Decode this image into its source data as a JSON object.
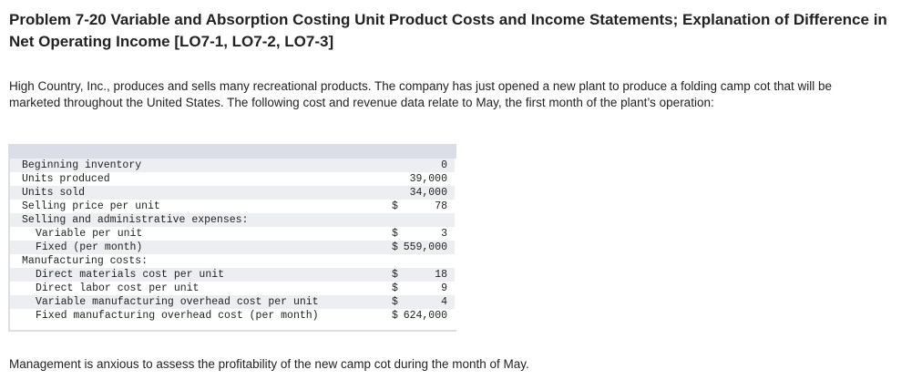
{
  "title": "Problem 7-20 Variable and Absorption Costing Unit Product Costs and Income Statements; Explanation of Difference in Net Operating Income [LO7-1, LO7-2, LO7-3]",
  "intro": "High Country, Inc., produces and sells many recreational products. The company has just opened a new plant to produce a folding camp cot that will be marketed throughout the United States. The following cost and revenue data relate to May, the first month of the plant’s operation:",
  "table": {
    "rows": [
      {
        "label": "Beginning inventory",
        "currency": "",
        "value": "0"
      },
      {
        "label": "Units produced",
        "currency": "",
        "value": "39,000"
      },
      {
        "label": "Units sold",
        "currency": "",
        "value": "34,000"
      },
      {
        "label": "Selling price per unit",
        "currency": "$",
        "value": "78"
      },
      {
        "label": "Selling and administrative expenses:",
        "currency": "",
        "value": ""
      },
      {
        "label": "Variable per unit",
        "currency": "$",
        "value": "3"
      },
      {
        "label": "Fixed (per month)",
        "currency": "$",
        "value": "559,000"
      },
      {
        "label": "Manufacturing costs:",
        "currency": "",
        "value": ""
      },
      {
        "label": "Direct materials cost per unit",
        "currency": "$",
        "value": "18"
      },
      {
        "label": "Direct labor cost per unit",
        "currency": "$",
        "value": "9"
      },
      {
        "label": "Variable manufacturing overhead cost per unit",
        "currency": "$",
        "value": "4"
      },
      {
        "label": "Fixed manufacturing overhead cost (per month)",
        "currency": "$",
        "value": "624,000"
      }
    ]
  },
  "closing": "Management is anxious to assess the profitability of the new camp cot during the month of May.",
  "colors": {
    "text": "#222222",
    "panel_bar": "#dbdee6",
    "row_shade": "#eceef2"
  }
}
